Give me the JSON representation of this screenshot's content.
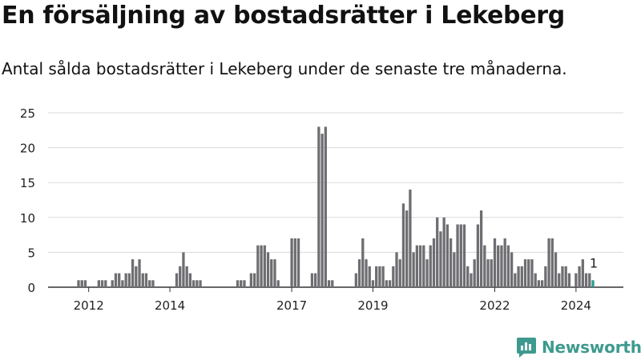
{
  "title": "En försäljning av bostadsrätter i Lekeberg",
  "subtitle": "Antal sålda bostadsrätter i Lekeberg under de senaste tre månaderna.",
  "brand": {
    "name": "Newsworthy",
    "icon": "newsworthy-logo-icon",
    "color": "#3e9a8e"
  },
  "chart_data": {
    "type": "bar",
    "title": "",
    "xlabel": "",
    "ylabel": "",
    "ylim": [
      0,
      25
    ],
    "yticks": [
      0,
      5,
      10,
      15,
      20,
      25
    ],
    "grid": true,
    "x_start": "2011-01",
    "x_end": "2025-03",
    "x_ticks": [
      {
        "label": "2012",
        "date": "2012-01"
      },
      {
        "label": "2014",
        "date": "2014-01"
      },
      {
        "label": "2017",
        "date": "2017-01"
      },
      {
        "label": "2019",
        "date": "2019-01"
      },
      {
        "label": "2022",
        "date": "2022-01"
      },
      {
        "label": "2024",
        "date": "2024-01"
      }
    ],
    "bar_color": "#6e6e72",
    "highlight_color": "#2a9d8f",
    "series": [
      {
        "values": [
          {
            "date": "2011-10",
            "value": 1
          },
          {
            "date": "2011-11",
            "value": 1
          },
          {
            "date": "2011-12",
            "value": 1
          },
          {
            "date": "2012-04",
            "value": 1
          },
          {
            "date": "2012-05",
            "value": 1
          },
          {
            "date": "2012-06",
            "value": 1
          },
          {
            "date": "2012-08",
            "value": 1
          },
          {
            "date": "2012-09",
            "value": 2
          },
          {
            "date": "2012-10",
            "value": 2
          },
          {
            "date": "2012-11",
            "value": 1
          },
          {
            "date": "2012-12",
            "value": 2
          },
          {
            "date": "2013-01",
            "value": 2
          },
          {
            "date": "2013-02",
            "value": 4
          },
          {
            "date": "2013-03",
            "value": 3
          },
          {
            "date": "2013-04",
            "value": 4
          },
          {
            "date": "2013-05",
            "value": 2
          },
          {
            "date": "2013-06",
            "value": 2
          },
          {
            "date": "2013-07",
            "value": 1
          },
          {
            "date": "2013-08",
            "value": 1
          },
          {
            "date": "2014-03",
            "value": 2
          },
          {
            "date": "2014-04",
            "value": 3
          },
          {
            "date": "2014-05",
            "value": 5
          },
          {
            "date": "2014-06",
            "value": 3
          },
          {
            "date": "2014-07",
            "value": 2
          },
          {
            "date": "2014-08",
            "value": 1
          },
          {
            "date": "2014-09",
            "value": 1
          },
          {
            "date": "2014-10",
            "value": 1
          },
          {
            "date": "2015-09",
            "value": 1
          },
          {
            "date": "2015-10",
            "value": 1
          },
          {
            "date": "2015-11",
            "value": 1
          },
          {
            "date": "2016-01",
            "value": 2
          },
          {
            "date": "2016-02",
            "value": 2
          },
          {
            "date": "2016-03",
            "value": 6
          },
          {
            "date": "2016-04",
            "value": 6
          },
          {
            "date": "2016-05",
            "value": 6
          },
          {
            "date": "2016-06",
            "value": 5
          },
          {
            "date": "2016-07",
            "value": 4
          },
          {
            "date": "2016-08",
            "value": 4
          },
          {
            "date": "2016-09",
            "value": 1
          },
          {
            "date": "2017-01",
            "value": 7
          },
          {
            "date": "2017-02",
            "value": 7
          },
          {
            "date": "2017-03",
            "value": 7
          },
          {
            "date": "2017-07",
            "value": 2
          },
          {
            "date": "2017-08",
            "value": 2
          },
          {
            "date": "2017-09",
            "value": 23
          },
          {
            "date": "2017-10",
            "value": 22
          },
          {
            "date": "2017-11",
            "value": 23
          },
          {
            "date": "2017-12",
            "value": 1
          },
          {
            "date": "2018-01",
            "value": 1
          },
          {
            "date": "2018-08",
            "value": 2
          },
          {
            "date": "2018-09",
            "value": 4
          },
          {
            "date": "2018-10",
            "value": 7
          },
          {
            "date": "2018-11",
            "value": 4
          },
          {
            "date": "2018-12",
            "value": 3
          },
          {
            "date": "2019-01",
            "value": 1
          },
          {
            "date": "2019-02",
            "value": 3
          },
          {
            "date": "2019-03",
            "value": 3
          },
          {
            "date": "2019-04",
            "value": 3
          },
          {
            "date": "2019-05",
            "value": 1
          },
          {
            "date": "2019-06",
            "value": 1
          },
          {
            "date": "2019-07",
            "value": 3
          },
          {
            "date": "2019-08",
            "value": 5
          },
          {
            "date": "2019-09",
            "value": 4
          },
          {
            "date": "2019-10",
            "value": 12
          },
          {
            "date": "2019-11",
            "value": 11
          },
          {
            "date": "2019-12",
            "value": 14
          },
          {
            "date": "2020-01",
            "value": 5
          },
          {
            "date": "2020-02",
            "value": 6
          },
          {
            "date": "2020-03",
            "value": 6
          },
          {
            "date": "2020-04",
            "value": 6
          },
          {
            "date": "2020-05",
            "value": 4
          },
          {
            "date": "2020-06",
            "value": 6
          },
          {
            "date": "2020-07",
            "value": 7
          },
          {
            "date": "2020-08",
            "value": 10
          },
          {
            "date": "2020-09",
            "value": 8
          },
          {
            "date": "2020-10",
            "value": 10
          },
          {
            "date": "2020-11",
            "value": 9
          },
          {
            "date": "2020-12",
            "value": 7
          },
          {
            "date": "2021-01",
            "value": 5
          },
          {
            "date": "2021-02",
            "value": 9
          },
          {
            "date": "2021-03",
            "value": 9
          },
          {
            "date": "2021-04",
            "value": 9
          },
          {
            "date": "2021-05",
            "value": 3
          },
          {
            "date": "2021-06",
            "value": 2
          },
          {
            "date": "2021-07",
            "value": 4
          },
          {
            "date": "2021-08",
            "value": 9
          },
          {
            "date": "2021-09",
            "value": 11
          },
          {
            "date": "2021-10",
            "value": 6
          },
          {
            "date": "2021-11",
            "value": 4
          },
          {
            "date": "2021-12",
            "value": 4
          },
          {
            "date": "2022-01",
            "value": 7
          },
          {
            "date": "2022-02",
            "value": 6
          },
          {
            "date": "2022-03",
            "value": 6
          },
          {
            "date": "2022-04",
            "value": 7
          },
          {
            "date": "2022-05",
            "value": 6
          },
          {
            "date": "2022-06",
            "value": 5
          },
          {
            "date": "2022-07",
            "value": 2
          },
          {
            "date": "2022-08",
            "value": 3
          },
          {
            "date": "2022-09",
            "value": 3
          },
          {
            "date": "2022-10",
            "value": 4
          },
          {
            "date": "2022-11",
            "value": 4
          },
          {
            "date": "2022-12",
            "value": 4
          },
          {
            "date": "2023-01",
            "value": 2
          },
          {
            "date": "2023-02",
            "value": 1
          },
          {
            "date": "2023-03",
            "value": 1
          },
          {
            "date": "2023-04",
            "value": 3
          },
          {
            "date": "2023-05",
            "value": 7
          },
          {
            "date": "2023-06",
            "value": 7
          },
          {
            "date": "2023-07",
            "value": 5
          },
          {
            "date": "2023-08",
            "value": 2
          },
          {
            "date": "2023-09",
            "value": 3
          },
          {
            "date": "2023-10",
            "value": 3
          },
          {
            "date": "2023-11",
            "value": 2
          },
          {
            "date": "2024-01",
            "value": 2
          },
          {
            "date": "2024-02",
            "value": 3
          },
          {
            "date": "2024-03",
            "value": 4
          },
          {
            "date": "2024-04",
            "value": 2
          },
          {
            "date": "2024-05",
            "value": 2
          },
          {
            "date": "2024-06",
            "value": 1
          }
        ]
      }
    ],
    "annotation": {
      "date": "2024-06",
      "text": "1"
    }
  }
}
